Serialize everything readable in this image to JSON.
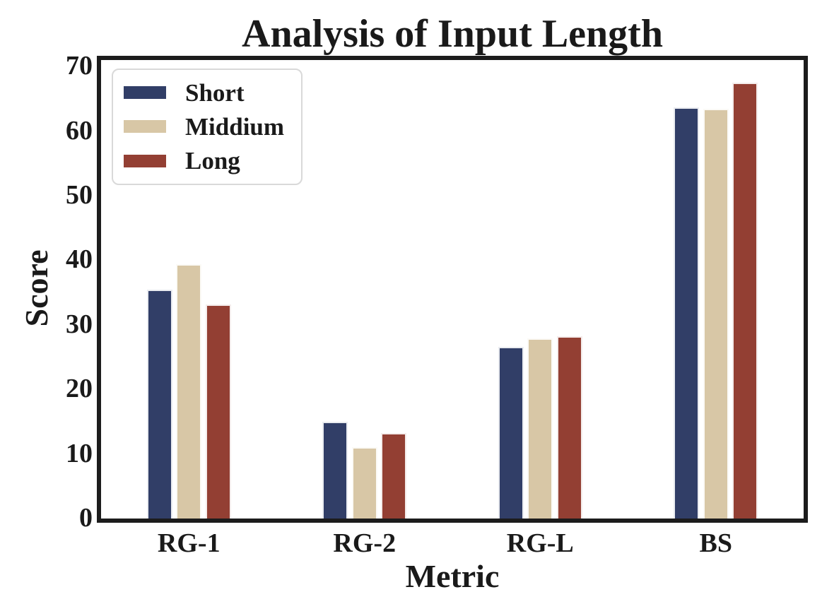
{
  "chart_data": {
    "type": "bar",
    "title": "Analysis of Input Length",
    "xlabel": "Metric",
    "ylabel": "Score",
    "categories": [
      "RG-1",
      "RG-2",
      "RG-L",
      "BS"
    ],
    "series": [
      {
        "name": "Short",
        "color": "#313e67",
        "values": [
          35.4,
          15.0,
          26.6,
          63.7
        ]
      },
      {
        "name": "Middium",
        "color": "#d8c7a6",
        "values": [
          39.4,
          11.0,
          27.9,
          63.4
        ]
      },
      {
        "name": "Long",
        "color": "#933f33",
        "values": [
          33.2,
          13.2,
          28.2,
          67.5
        ]
      }
    ],
    "ylim": [
      0,
      71
    ],
    "yticks": [
      0,
      10,
      20,
      30,
      40,
      50,
      60,
      70
    ],
    "legend_position": "upper-left",
    "grid": false,
    "colors": {
      "spine": "#1c1c1c",
      "text": "#1a1a1a",
      "bar_edge": "#ffffff",
      "legend_border": "#d9d9d9",
      "background": "#ffffff"
    }
  }
}
